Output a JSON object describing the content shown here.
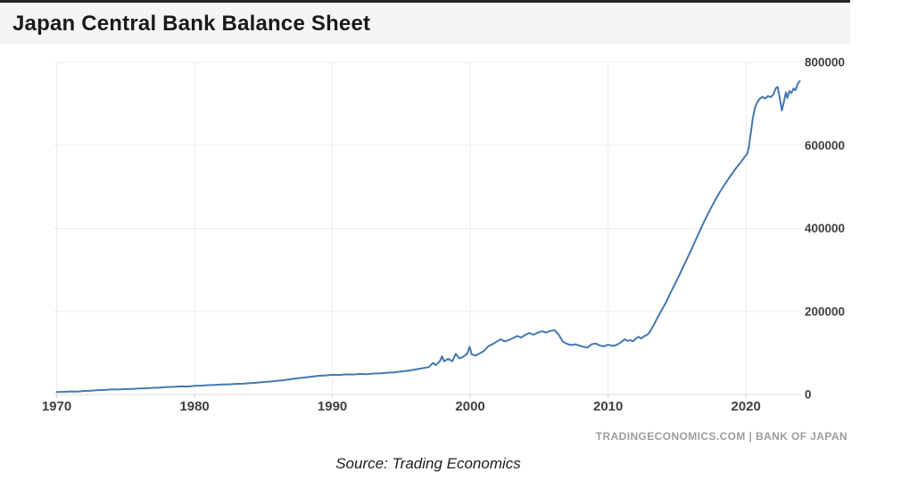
{
  "header": {
    "title": "Japan Central Bank Balance Sheet"
  },
  "watermark": {
    "text": "TRADINGECONOMICS.COM | BANK OF JAPAN"
  },
  "footer": {
    "source": "Source: Trading Economics"
  },
  "chart_data": {
    "type": "line",
    "title": "Japan Central Bank Balance Sheet",
    "xlabel": "",
    "ylabel": "",
    "x_ticks": [
      1970,
      1980,
      1990,
      2000,
      2010,
      2020
    ],
    "y_ticks": [
      0,
      200000,
      400000,
      600000,
      800000
    ],
    "xlim": [
      1969.9,
      2024.0
    ],
    "ylim": [
      0,
      800000
    ],
    "grid": true,
    "legend_position": "none",
    "colors": {
      "line": "#4478b0",
      "grid": "#ededed",
      "axis": "#d8d8d8",
      "tick_text": "#404040"
    },
    "series": [
      {
        "name": "Japan Central Bank Balance Sheet",
        "color": "#4478b0",
        "points": [
          [
            1970.0,
            6000
          ],
          [
            1970.5,
            6500
          ],
          [
            1971.0,
            7200
          ],
          [
            1971.5,
            7000
          ],
          [
            1972.0,
            8500
          ],
          [
            1972.5,
            9000
          ],
          [
            1973.0,
            10500
          ],
          [
            1973.5,
            11000
          ],
          [
            1974.0,
            12500
          ],
          [
            1974.5,
            12000
          ],
          [
            1975.0,
            13000
          ],
          [
            1975.5,
            13500
          ],
          [
            1976.0,
            14500
          ],
          [
            1976.5,
            15000
          ],
          [
            1977.0,
            16000
          ],
          [
            1977.5,
            16500
          ],
          [
            1978.0,
            18000
          ],
          [
            1978.5,
            18500
          ],
          [
            1979.0,
            19500
          ],
          [
            1979.5,
            19000
          ],
          [
            1980.0,
            21000
          ],
          [
            1980.5,
            21500
          ],
          [
            1981.0,
            22500
          ],
          [
            1981.5,
            23000
          ],
          [
            1982.0,
            24000
          ],
          [
            1982.5,
            24500
          ],
          [
            1983.0,
            25500
          ],
          [
            1983.5,
            26000
          ],
          [
            1984.0,
            27500
          ],
          [
            1984.5,
            28500
          ],
          [
            1985.0,
            30000
          ],
          [
            1985.5,
            31000
          ],
          [
            1986.0,
            33000
          ],
          [
            1986.5,
            34500
          ],
          [
            1987.0,
            37000
          ],
          [
            1987.5,
            39000
          ],
          [
            1988.0,
            41000
          ],
          [
            1988.5,
            43000
          ],
          [
            1989.0,
            45000
          ],
          [
            1989.5,
            46000
          ],
          [
            1990.0,
            47500
          ],
          [
            1990.5,
            47000
          ],
          [
            1991.0,
            48500
          ],
          [
            1991.5,
            48000
          ],
          [
            1992.0,
            49500
          ],
          [
            1992.5,
            49000
          ],
          [
            1993.0,
            50500
          ],
          [
            1993.5,
            51000
          ],
          [
            1994.0,
            52500
          ],
          [
            1994.5,
            53500
          ],
          [
            1995.0,
            55500
          ],
          [
            1995.5,
            57500
          ],
          [
            1996.0,
            60000
          ],
          [
            1996.5,
            63000
          ],
          [
            1997.0,
            66000
          ],
          [
            1997.3,
            76000
          ],
          [
            1997.5,
            71000
          ],
          [
            1997.8,
            80000
          ],
          [
            1997.95,
            92000
          ],
          [
            1998.1,
            80000
          ],
          [
            1998.4,
            86000
          ],
          [
            1998.7,
            80000
          ],
          [
            1998.95,
            98000
          ],
          [
            1999.2,
            87000
          ],
          [
            1999.5,
            91000
          ],
          [
            1999.8,
            99000
          ],
          [
            1999.95,
            115000
          ],
          [
            2000.1,
            97000
          ],
          [
            2000.4,
            94000
          ],
          [
            2000.7,
            99000
          ],
          [
            2001.0,
            105000
          ],
          [
            2001.3,
            116000
          ],
          [
            2001.6,
            121000
          ],
          [
            2001.9,
            127000
          ],
          [
            2002.2,
            133000
          ],
          [
            2002.5,
            128000
          ],
          [
            2002.8,
            131000
          ],
          [
            2003.1,
            136000
          ],
          [
            2003.4,
            141000
          ],
          [
            2003.7,
            137000
          ],
          [
            2004.0,
            144000
          ],
          [
            2004.3,
            148000
          ],
          [
            2004.6,
            144000
          ],
          [
            2004.9,
            149000
          ],
          [
            2005.2,
            152000
          ],
          [
            2005.5,
            149000
          ],
          [
            2005.8,
            153000
          ],
          [
            2006.1,
            155000
          ],
          [
            2006.4,
            145000
          ],
          [
            2006.7,
            128000
          ],
          [
            2007.0,
            122000
          ],
          [
            2007.3,
            119000
          ],
          [
            2007.6,
            121000
          ],
          [
            2007.9,
            118000
          ],
          [
            2008.2,
            115000
          ],
          [
            2008.5,
            113000
          ],
          [
            2008.8,
            121000
          ],
          [
            2009.1,
            123000
          ],
          [
            2009.4,
            118000
          ],
          [
            2009.7,
            116000
          ],
          [
            2010.0,
            120000
          ],
          [
            2010.3,
            117000
          ],
          [
            2010.6,
            119000
          ],
          [
            2010.9,
            125000
          ],
          [
            2011.2,
            133000
          ],
          [
            2011.4,
            129000
          ],
          [
            2011.6,
            131000
          ],
          [
            2011.8,
            128000
          ],
          [
            2012.0,
            134000
          ],
          [
            2012.2,
            139000
          ],
          [
            2012.4,
            135000
          ],
          [
            2012.6,
            140000
          ],
          [
            2012.8,
            143000
          ],
          [
            2013.0,
            149000
          ],
          [
            2013.3,
            167000
          ],
          [
            2013.6,
            186000
          ],
          [
            2013.9,
            204000
          ],
          [
            2014.2,
            222000
          ],
          [
            2014.5,
            243000
          ],
          [
            2014.8,
            263000
          ],
          [
            2015.1,
            283000
          ],
          [
            2015.4,
            304000
          ],
          [
            2015.7,
            325000
          ],
          [
            2016.0,
            346000
          ],
          [
            2016.3,
            368000
          ],
          [
            2016.6,
            390000
          ],
          [
            2016.9,
            412000
          ],
          [
            2017.2,
            432000
          ],
          [
            2017.5,
            452000
          ],
          [
            2017.8,
            470000
          ],
          [
            2018.1,
            487000
          ],
          [
            2018.4,
            503000
          ],
          [
            2018.7,
            518000
          ],
          [
            2019.0,
            532000
          ],
          [
            2019.3,
            546000
          ],
          [
            2019.6,
            558000
          ],
          [
            2019.9,
            572000
          ],
          [
            2020.1,
            580000
          ],
          [
            2020.2,
            595000
          ],
          [
            2020.35,
            630000
          ],
          [
            2020.5,
            665000
          ],
          [
            2020.65,
            690000
          ],
          [
            2020.8,
            703000
          ],
          [
            2021.0,
            712000
          ],
          [
            2021.2,
            717000
          ],
          [
            2021.4,
            713000
          ],
          [
            2021.6,
            719000
          ],
          [
            2021.8,
            716000
          ],
          [
            2022.0,
            723000
          ],
          [
            2022.15,
            737000
          ],
          [
            2022.3,
            741000
          ],
          [
            2022.45,
            715000
          ],
          [
            2022.6,
            684000
          ],
          [
            2022.75,
            705000
          ],
          [
            2022.9,
            728000
          ],
          [
            2023.0,
            714000
          ],
          [
            2023.15,
            731000
          ],
          [
            2023.3,
            726000
          ],
          [
            2023.45,
            737000
          ],
          [
            2023.6,
            733000
          ],
          [
            2023.75,
            748000
          ],
          [
            2023.9,
            755000
          ]
        ]
      }
    ]
  }
}
